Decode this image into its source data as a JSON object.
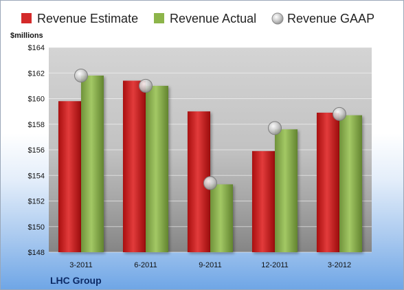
{
  "chart_data": {
    "type": "bar",
    "unit_label": "$millions",
    "categories": [
      "3-2011",
      "6-2011",
      "9-2011",
      "12-2011",
      "3-2012"
    ],
    "series": [
      {
        "name": "Revenue Estimate",
        "type": "bar",
        "color": "#d42a2a",
        "values": [
          159.8,
          161.4,
          159.0,
          155.9,
          158.9
        ]
      },
      {
        "name": "Revenue Actual",
        "type": "bar",
        "color": "#8db54a",
        "values": [
          161.8,
          161.0,
          153.3,
          157.6,
          158.7
        ]
      },
      {
        "name": "Revenue GAAP",
        "type": "marker",
        "color": "#b9b9b9",
        "values": [
          161.8,
          161.0,
          153.4,
          157.7,
          158.8
        ]
      }
    ],
    "ylim": [
      148,
      164
    ],
    "yticks": [
      "$148",
      "$150",
      "$152",
      "$154",
      "$156",
      "$158",
      "$160",
      "$162",
      "$164"
    ],
    "grid": true,
    "legend_position": "top"
  },
  "footer": {
    "company": "LHC Group"
  }
}
